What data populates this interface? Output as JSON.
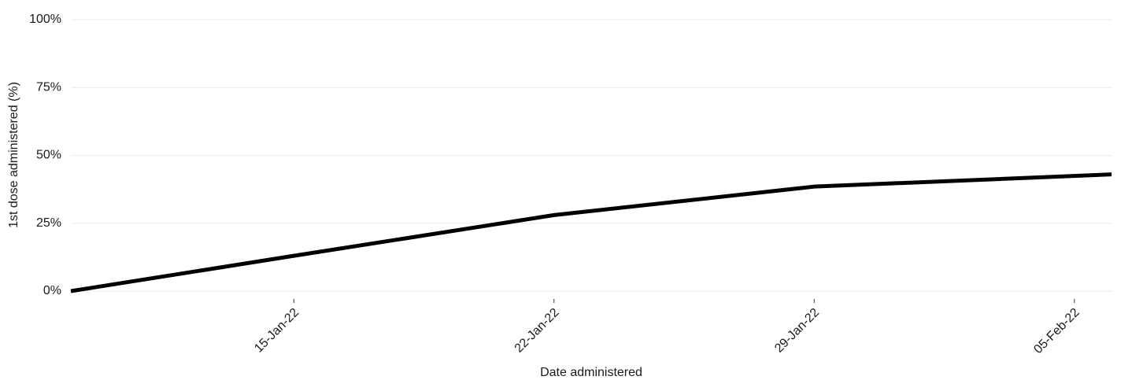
{
  "chart_data": {
    "type": "line",
    "x_label": "Date administered",
    "y_label": "1st dose administered (%)",
    "x": [
      "2022-01-09",
      "2022-01-15",
      "2022-01-22",
      "2022-01-29",
      "2022-02-06"
    ],
    "values": [
      0,
      13,
      28,
      38.5,
      43
    ],
    "color": "#000000",
    "xlim": [
      "2022-01-09",
      "2022-02-06"
    ],
    "xticks": [
      {
        "value": "2022-01-15",
        "label": "15-Jan-22"
      },
      {
        "value": "2022-01-22",
        "label": "22-Jan-22"
      },
      {
        "value": "2022-01-29",
        "label": "29-Jan-22"
      },
      {
        "value": "2022-02-05",
        "label": "05-Feb-22"
      }
    ],
    "ylim": [
      0,
      100
    ],
    "yticks": [
      {
        "value": 0,
        "label": "0%"
      },
      {
        "value": 25,
        "label": "25%"
      },
      {
        "value": 50,
        "label": "50%"
      },
      {
        "value": 75,
        "label": "75%"
      },
      {
        "value": 100,
        "label": "100%"
      }
    ],
    "grid": true
  }
}
